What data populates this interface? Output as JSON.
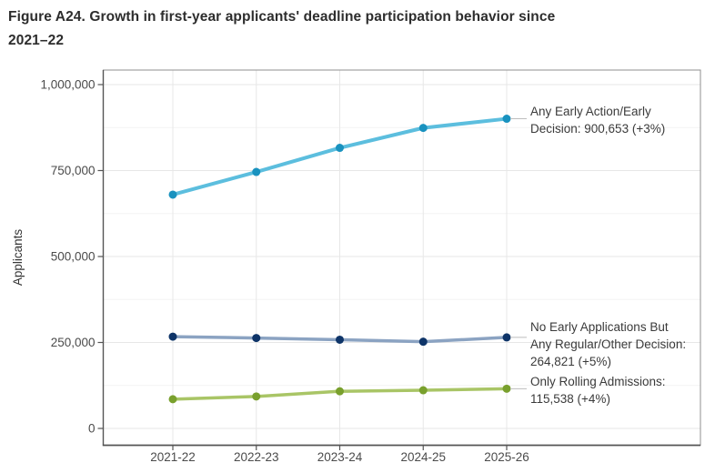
{
  "figure": {
    "title_line1": "Figure A24. Growth in first-year applicants' deadline participation behavior since",
    "title_line2": "2021–22"
  },
  "chart_data": {
    "type": "line",
    "title": "Figure A24. Growth in first-year applicants' deadline participation behavior since 2021–22",
    "xlabel": "",
    "ylabel": "Applicants",
    "categories": [
      "2021-22",
      "2022-23",
      "2023-24",
      "2024-25",
      "2025-26"
    ],
    "ylim": [
      0,
      1000000
    ],
    "yticks": [
      0,
      250000,
      500000,
      750000,
      1000000
    ],
    "ytick_labels": [
      "0",
      "250,000",
      "500,000",
      "750,000",
      "1,000,000"
    ],
    "yminor_ticks": [
      125000,
      375000,
      625000,
      875000
    ],
    "grid": true,
    "legend_position": "direct-labels-right",
    "series": [
      {
        "name": "Any Early Action/Early Decision",
        "values": [
          680000,
          746000,
          816000,
          874000,
          900653
        ],
        "final_value_label": "900,653",
        "pct_change_label": "+3%",
        "line_color": "#5CBEDE",
        "marker_color": "#1992BF",
        "annotation_lines": [
          "Any Early Action/Early",
          "Decision: 900,653 (+3%)"
        ]
      },
      {
        "name": "No Early Applications But Any Regular/Other Decision",
        "values": [
          267000,
          263000,
          258000,
          252210,
          264821
        ],
        "final_value_label": "264,821",
        "pct_change_label": "+5%",
        "line_color": "#8BA3C2",
        "marker_color": "#0E3468",
        "annotation_lines": [
          "No Early Applications But",
          "Any Regular/Other Decision:",
          "264,821 (+5%)"
        ]
      },
      {
        "name": "Only Rolling Admissions",
        "values": [
          85000,
          93000,
          108000,
          111094,
          115538
        ],
        "final_value_label": "115,538",
        "pct_change_label": "+4%",
        "line_color": "#A9C566",
        "marker_color": "#79A02D",
        "annotation_lines": [
          "Only Rolling Admissions:",
          "115,538 (+4%)"
        ]
      }
    ],
    "colors": {
      "grid_major": "#e7e7e7",
      "grid_minor": "#f3f3f3",
      "panel_border": "#8f8f8f",
      "axis_line": "#555555",
      "tick_text": "#4b4b4b",
      "annotation_text": "#3a3a3a",
      "leader_line": "#bdbdbd",
      "title_text": "#2d2d2d"
    }
  }
}
